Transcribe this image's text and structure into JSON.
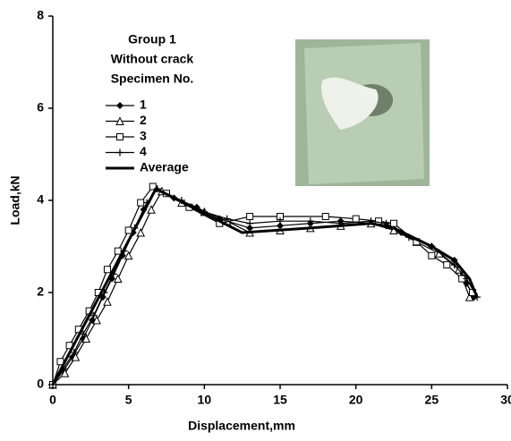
{
  "chart_data": {
    "type": "line",
    "x_label": "Displacement,mm",
    "y_label": "Load,kN",
    "legend_title": [
      "Group 1",
      "Without crack",
      "Specimen No."
    ],
    "xlim": [
      0,
      30
    ],
    "xticks": [
      0,
      5,
      10,
      15,
      20,
      25,
      30
    ],
    "ylim": [
      0,
      8
    ],
    "yticks": [
      0,
      2,
      4,
      6,
      8
    ],
    "grid": false,
    "series": [
      {
        "name": "1",
        "color": "#000000",
        "marker": "diamond",
        "x": [
          0,
          0.7,
          1.3,
          2,
          2.6,
          3.3,
          3.9,
          4.6,
          5.3,
          6,
          6.8,
          8,
          9.5,
          11,
          13,
          15,
          17,
          19,
          21,
          22,
          23,
          25,
          26.5,
          27.3,
          27.8
        ],
        "values": [
          0,
          0.3,
          0.6,
          1.0,
          1.4,
          1.9,
          2.3,
          2.8,
          3.3,
          3.8,
          4.25,
          4.05,
          3.85,
          3.6,
          3.4,
          3.45,
          3.5,
          3.55,
          3.5,
          3.45,
          3.3,
          3.0,
          2.7,
          2.2,
          1.9
        ]
      },
      {
        "name": "2",
        "color": "#000000",
        "marker": "triangle",
        "x": [
          0,
          0.8,
          1.5,
          2.2,
          2.9,
          3.6,
          4.3,
          5,
          5.8,
          6.5,
          7.2,
          8.5,
          10,
          11.5,
          13,
          15,
          17,
          19,
          21,
          22.5,
          24,
          25.5,
          26.8,
          27.5
        ],
        "values": [
          0,
          0.25,
          0.6,
          1.0,
          1.4,
          1.8,
          2.3,
          2.8,
          3.3,
          3.8,
          4.2,
          3.95,
          3.75,
          3.55,
          3.3,
          3.35,
          3.4,
          3.45,
          3.5,
          3.35,
          3.1,
          2.85,
          2.5,
          1.9
        ]
      },
      {
        "name": "3",
        "color": "#000000",
        "marker": "square",
        "x": [
          0,
          0.5,
          1.1,
          1.7,
          2.4,
          3,
          3.6,
          4.3,
          5,
          5.8,
          6.6,
          7.5,
          9,
          11,
          13,
          15,
          18,
          20,
          21.5,
          22.5,
          24,
          25,
          26,
          27,
          27.7
        ],
        "values": [
          0,
          0.5,
          0.85,
          1.2,
          1.6,
          2.0,
          2.5,
          2.9,
          3.35,
          3.95,
          4.3,
          4.15,
          3.85,
          3.5,
          3.65,
          3.65,
          3.65,
          3.6,
          3.55,
          3.5,
          3.1,
          2.8,
          2.6,
          2.3,
          2.0
        ]
      },
      {
        "name": "4",
        "color": "#000000",
        "marker": "plus",
        "x": [
          0,
          0.7,
          1.4,
          2,
          2.7,
          3.4,
          4,
          4.7,
          5.4,
          6.2,
          6.9,
          8.5,
          10,
          11.5,
          13,
          15,
          17,
          19,
          21,
          22,
          23.5,
          25,
          26.5,
          27.3,
          28
        ],
        "values": [
          0,
          0.35,
          0.7,
          1.1,
          1.5,
          2.0,
          2.4,
          2.9,
          3.4,
          3.95,
          4.25,
          4.0,
          3.75,
          3.6,
          3.5,
          3.55,
          3.55,
          3.5,
          3.55,
          3.5,
          3.2,
          3.0,
          2.6,
          2.3,
          1.9
        ]
      },
      {
        "name": "Average",
        "color": "#000000",
        "marker": "none",
        "line_width": 3,
        "x": [
          0,
          6.8,
          12.5,
          17,
          21,
          22.5,
          25,
          26.5,
          27.5,
          28
        ],
        "values": [
          0,
          4.25,
          3.3,
          3.4,
          3.5,
          3.4,
          3.0,
          2.7,
          2.3,
          1.9
        ]
      }
    ]
  }
}
